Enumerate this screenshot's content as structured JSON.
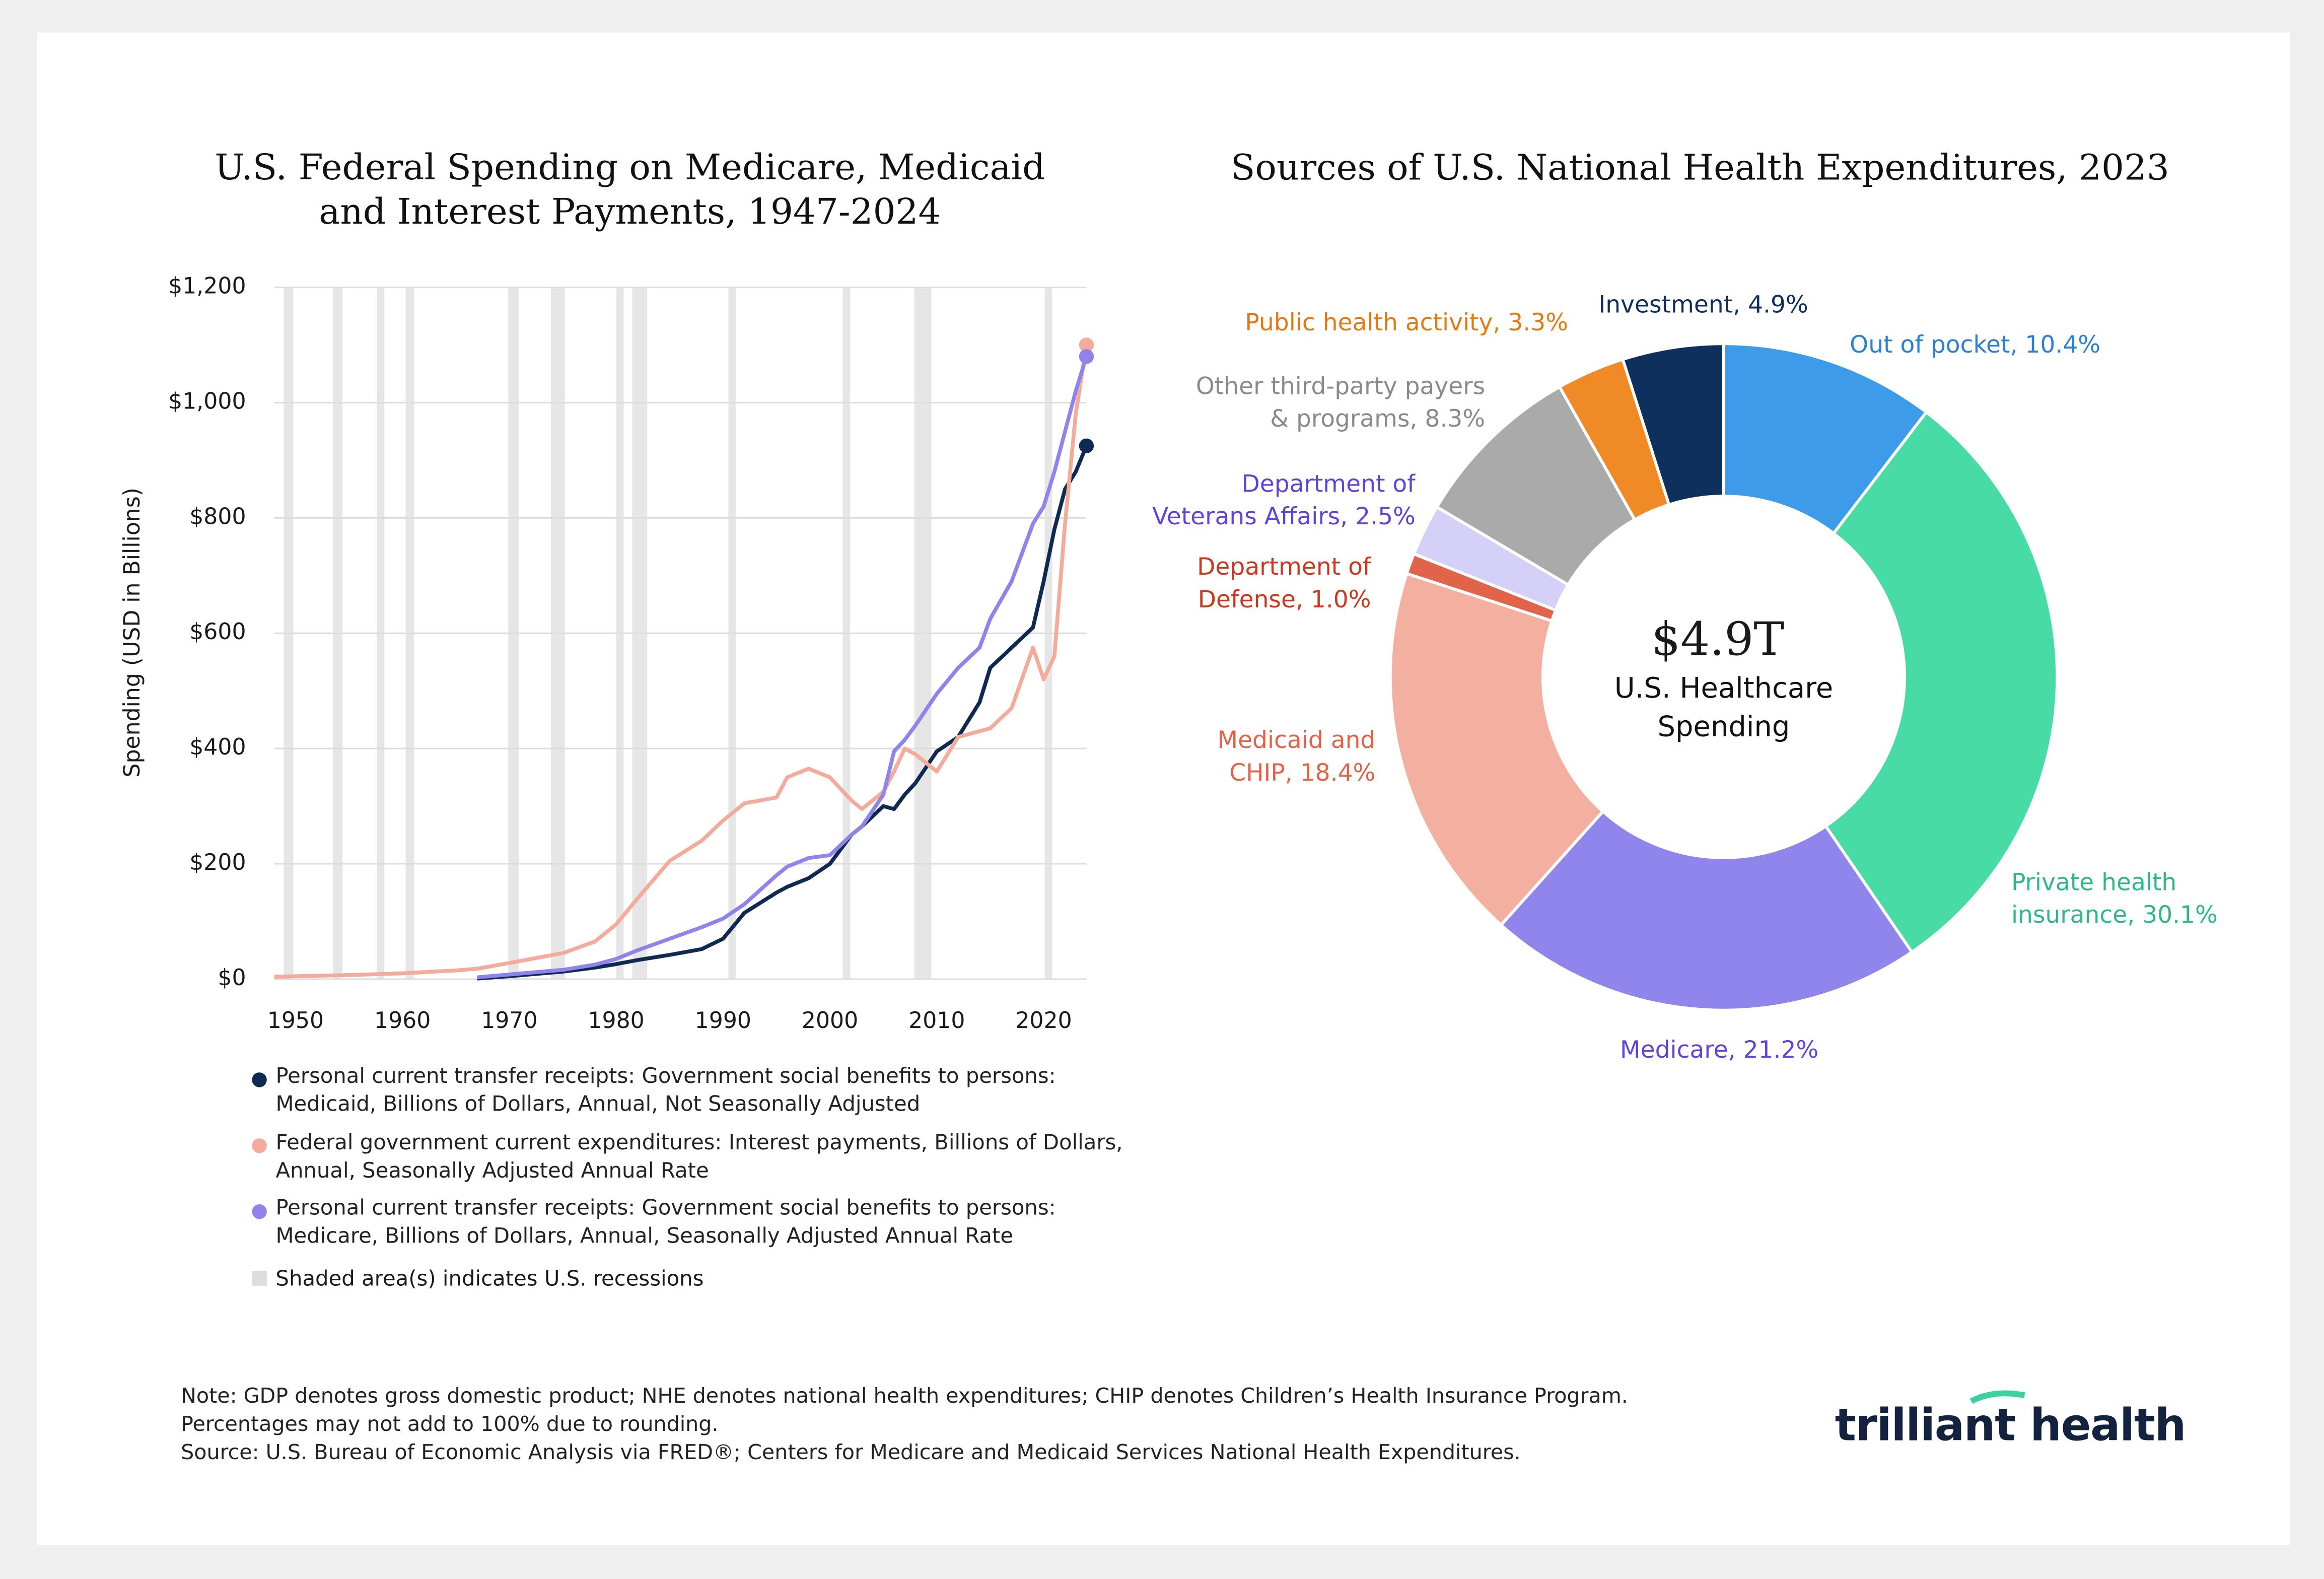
{
  "chart_data": [
    {
      "type": "line",
      "title": "U.S. Federal Spending on Medicare, Medicaid\nand Interest Payments, 1947-2024",
      "y_label": "Spending (USD in Billions)",
      "x": [
        1948,
        1950,
        1955,
        1960,
        1965,
        1967,
        1970,
        1975,
        1978,
        1980,
        1982,
        1985,
        1988,
        1990,
        1992,
        1995,
        1996,
        1998,
        2000,
        2002,
        2003,
        2005,
        2006,
        2007,
        2008,
        2010,
        2012,
        2014,
        2015,
        2017,
        2019,
        2020,
        2021,
        2022,
        2023,
        2024
      ],
      "series": [
        {
          "name": "Personal current transfer receipts: Government social benefits to persons:\nMedicaid, Billions of Dollars, Annual, Not Seasonally Adjusted",
          "color": "#0e2a52",
          "values": [
            null,
            null,
            null,
            null,
            null,
            1,
            5,
            13,
            20,
            26,
            33,
            42,
            52,
            70,
            115,
            150,
            160,
            175,
            200,
            250,
            265,
            300,
            295,
            320,
            340,
            395,
            420,
            480,
            540,
            575,
            610,
            690,
            780,
            850,
            880,
            925
          ]
        },
        {
          "name": "Federal government current expenditures: Interest payments, Billions of Dollars,\nAnnual, Seasonally Adjusted Annual Rate",
          "color": "#f3ab9c",
          "values": [
            4,
            5,
            7,
            10,
            15,
            18,
            28,
            45,
            65,
            95,
            140,
            205,
            240,
            275,
            305,
            315,
            350,
            365,
            350,
            310,
            295,
            325,
            360,
            400,
            390,
            360,
            420,
            430,
            435,
            470,
            575,
            520,
            560,
            790,
            980,
            1100
          ]
        },
        {
          "name": "Personal current transfer receipts: Government social benefits to persons:\nMedicare, Billions of Dollars, Annual, Seasonally Adjusted Annual Rate",
          "color": "#8f84ec",
          "values": [
            null,
            null,
            null,
            null,
            null,
            3,
            8,
            16,
            25,
            35,
            50,
            70,
            90,
            105,
            130,
            180,
            195,
            210,
            215,
            250,
            265,
            320,
            395,
            415,
            440,
            495,
            540,
            575,
            625,
            690,
            790,
            820,
            880,
            950,
            1020,
            1080
          ]
        }
      ],
      "recessions": [
        [
          1948.9,
          1949.8
        ],
        [
          1953.5,
          1954.4
        ],
        [
          1957.6,
          1958.3
        ],
        [
          1960.3,
          1961.1
        ],
        [
          1969.9,
          1970.9
        ],
        [
          1973.9,
          1975.2
        ],
        [
          1980.0,
          1980.5
        ],
        [
          1981.5,
          1982.9
        ],
        [
          1990.5,
          1991.2
        ],
        [
          2001.2,
          2001.9
        ],
        [
          2007.9,
          2009.5
        ],
        [
          2020.1,
          2020.4
        ]
      ],
      "recession_label": "Shaded area(s) indicates U.S. recessions",
      "xlim": [
        1948,
        2024
      ],
      "xticks": [
        1950,
        1960,
        1970,
        1980,
        1990,
        2000,
        2010,
        2020
      ],
      "ylim": [
        0,
        1200
      ],
      "yticks": [
        {
          "value": 0,
          "label": "$0"
        },
        {
          "value": 200,
          "label": "$200"
        },
        {
          "value": 400,
          "label": "$400"
        },
        {
          "value": 600,
          "label": "$600"
        },
        {
          "value": 800,
          "label": "$800"
        },
        {
          "value": 1000,
          "label": "$1,000"
        },
        {
          "value": 1200,
          "label": "$1,200"
        }
      ],
      "grid": true
    },
    {
      "type": "donut",
      "title": "Sources of U.S. National Health Expenditures, 2023",
      "values": [
        10.4,
        30.1,
        21.2,
        18.4,
        1.0,
        2.5,
        8.3,
        3.3,
        4.9
      ],
      "value_labels": [
        "Out of pocket, 10.4%",
        "Private health\ninsurance, 30.1%",
        "Medicare, 21.2%",
        "Medicaid and\nCHIP, 18.4%",
        "Department of\nDefense, 1.0%",
        "Department of\nVeterans Affairs, 2.5%",
        "Other third-party payers\n& programs, 8.3%",
        "Public health activity, 3.3%",
        "Investment, 4.9%"
      ],
      "colors": [
        "#3d9be9",
        "#48dba5",
        "#8f85eb",
        "#f3afa0",
        "#e0634a",
        "#d4d0f8",
        "#aaaaaa",
        "#f08a24",
        "#0f2f5c"
      ],
      "label_colors": [
        "#2d7fd0",
        "#2fb885",
        "#5d45d8",
        "#e0634a",
        "#c9391f",
        "#5d45d8",
        "#8a8a8a",
        "#e07a14",
        "#0f2f5c"
      ],
      "center_value": "$4.9T",
      "center_text": "U.S. Healthcare\nSpending"
    }
  ],
  "notes": "Note: GDP denotes gross domestic product; NHE denotes national health expenditures; CHIP denotes Children’s Health Insurance Program.\nPercentages may not add to 100% due to rounding.\nSource: U.S. Bureau of Economic Analysis via FRED®; Centers for Medicare and Medicaid Services National Health Expenditures.",
  "logo": "trilliant health"
}
